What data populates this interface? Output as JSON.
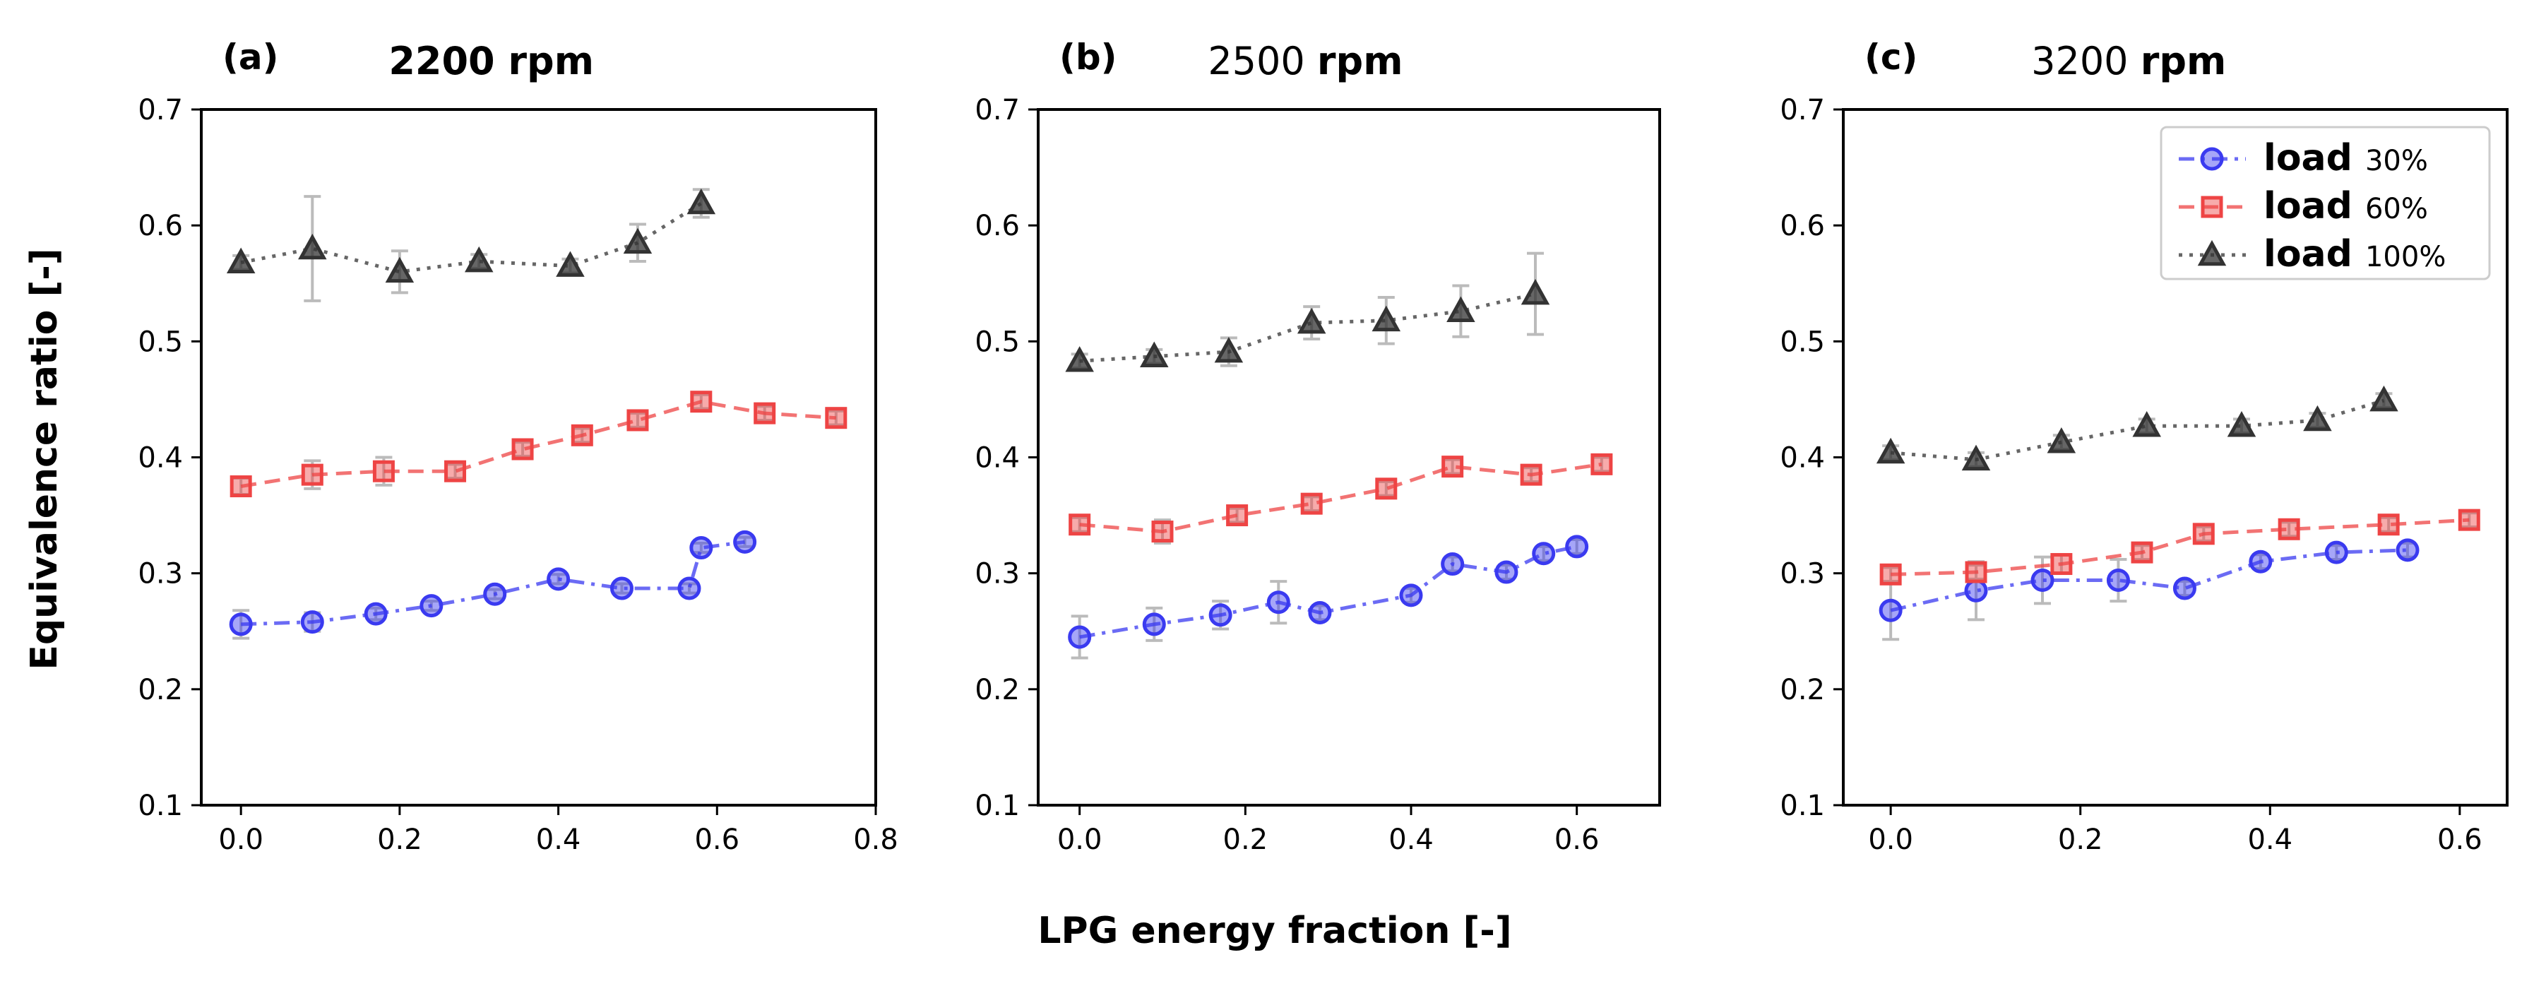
{
  "chart_data": [
    {
      "type": "line",
      "panel_label": "(a)",
      "title_value": "2200",
      "title_unit": "rpm",
      "xlabel": "LPG energy fraction [-]",
      "ylabel": "Equivalence ratio [-]",
      "xlim": [
        -0.05,
        0.8
      ],
      "ylim": [
        0.1,
        0.7
      ],
      "xticks": [
        0.0,
        0.2,
        0.4,
        0.6,
        0.8
      ],
      "xtick_labels": [
        "0.0",
        "0.2",
        "0.4",
        "0.6",
        "0.8"
      ],
      "yticks": [
        0.1,
        0.2,
        0.3,
        0.4,
        0.5,
        0.6,
        0.7
      ],
      "ytick_labels": [
        "0.1",
        "0.2",
        "0.3",
        "0.4",
        "0.5",
        "0.6",
        "0.7"
      ],
      "series": [
        {
          "name": "load 30%",
          "x": [
            0.0,
            0.09,
            0.17,
            0.24,
            0.32,
            0.4,
            0.48,
            0.565,
            0.58,
            0.635
          ],
          "y": [
            0.256,
            0.258,
            0.265,
            0.272,
            0.282,
            0.295,
            0.287,
            0.287,
            0.322,
            0.327
          ],
          "err": [
            0.012,
            0.008,
            0.005,
            0.004,
            0.004,
            0.004,
            0.004,
            0.004,
            0.004,
            0.004
          ]
        },
        {
          "name": "load 60%",
          "x": [
            0.0,
            0.09,
            0.18,
            0.27,
            0.355,
            0.43,
            0.5,
            0.58,
            0.66,
            0.75
          ],
          "y": [
            0.375,
            0.385,
            0.388,
            0.388,
            0.407,
            0.419,
            0.432,
            0.448,
            0.438,
            0.434
          ],
          "err": [
            0.007,
            0.012,
            0.012,
            0.006,
            0.006,
            0.006,
            0.006,
            0.006,
            0.006,
            0.006
          ]
        },
        {
          "name": "load 100%",
          "x": [
            0.0,
            0.09,
            0.2,
            0.3,
            0.415,
            0.5,
            0.58
          ],
          "y": [
            0.568,
            0.58,
            0.56,
            0.569,
            0.565,
            0.585,
            0.619
          ],
          "err": [
            0.006,
            0.045,
            0.018,
            0.006,
            0.006,
            0.016,
            0.012
          ]
        }
      ]
    },
    {
      "type": "line",
      "panel_label": "(b)",
      "title_value": "2500",
      "title_unit": "rpm",
      "xlim": [
        -0.05,
        0.7
      ],
      "ylim": [
        0.1,
        0.7
      ],
      "xticks": [
        0.0,
        0.2,
        0.4,
        0.6
      ],
      "xtick_labels": [
        "0.0",
        "0.2",
        "0.4",
        "0.6"
      ],
      "yticks": [
        0.1,
        0.2,
        0.3,
        0.4,
        0.5,
        0.6,
        0.7
      ],
      "ytick_labels": [
        "0.1",
        "0.2",
        "0.3",
        "0.4",
        "0.5",
        "0.6",
        "0.7"
      ],
      "series": [
        {
          "name": "load 30%",
          "x": [
            0.0,
            0.09,
            0.17,
            0.24,
            0.29,
            0.4,
            0.45,
            0.515,
            0.56,
            0.6
          ],
          "y": [
            0.245,
            0.256,
            0.264,
            0.275,
            0.266,
            0.281,
            0.308,
            0.301,
            0.317,
            0.323
          ],
          "err": [
            0.018,
            0.014,
            0.012,
            0.018,
            0.006,
            0.006,
            0.006,
            0.006,
            0.006,
            0.006
          ]
        },
        {
          "name": "load 60%",
          "x": [
            0.0,
            0.1,
            0.19,
            0.28,
            0.37,
            0.45,
            0.545,
            0.63
          ],
          "y": [
            0.342,
            0.336,
            0.35,
            0.36,
            0.373,
            0.392,
            0.385,
            0.394
          ],
          "err": [
            0.006,
            0.01,
            0.006,
            0.006,
            0.006,
            0.006,
            0.006,
            0.006
          ]
        },
        {
          "name": "load 100%",
          "x": [
            0.0,
            0.09,
            0.18,
            0.28,
            0.37,
            0.46,
            0.55
          ],
          "y": [
            0.483,
            0.487,
            0.491,
            0.516,
            0.518,
            0.526,
            0.541
          ],
          "err": [
            0.006,
            0.006,
            0.012,
            0.014,
            0.02,
            0.022,
            0.035
          ]
        }
      ]
    },
    {
      "type": "line",
      "panel_label": "(c)",
      "title_value": "3200",
      "title_unit": "rpm",
      "xlim": [
        -0.05,
        0.65
      ],
      "ylim": [
        0.1,
        0.7
      ],
      "xticks": [
        0.0,
        0.2,
        0.4,
        0.6
      ],
      "xtick_labels": [
        "0.0",
        "0.2",
        "0.4",
        "0.6"
      ],
      "yticks": [
        0.1,
        0.2,
        0.3,
        0.4,
        0.5,
        0.6,
        0.7
      ],
      "ytick_labels": [
        "0.1",
        "0.2",
        "0.3",
        "0.4",
        "0.5",
        "0.6",
        "0.7"
      ],
      "legend": {
        "placement": "top-right",
        "entries": [
          {
            "bold": "load",
            "value": "30%"
          },
          {
            "bold": "load",
            "value": "60%"
          },
          {
            "bold": "load",
            "value": "100%"
          }
        ]
      },
      "series": [
        {
          "name": "load 30%",
          "x": [
            0.0,
            0.09,
            0.16,
            0.24,
            0.31,
            0.39,
            0.47,
            0.545
          ],
          "y": [
            0.268,
            0.285,
            0.294,
            0.294,
            0.287,
            0.31,
            0.318,
            0.32
          ],
          "err": [
            0.025,
            0.025,
            0.02,
            0.018,
            0.006,
            0.006,
            0.006,
            0.006
          ]
        },
        {
          "name": "load 60%",
          "x": [
            0.0,
            0.09,
            0.18,
            0.265,
            0.33,
            0.42,
            0.525,
            0.61
          ],
          "y": [
            0.299,
            0.301,
            0.308,
            0.318,
            0.334,
            0.338,
            0.342,
            0.346
          ],
          "err": [
            0.006,
            0.006,
            0.008,
            0.006,
            0.006,
            0.006,
            0.006,
            0.006
          ]
        },
        {
          "name": "load 100%",
          "x": [
            0.0,
            0.09,
            0.18,
            0.27,
            0.37,
            0.45,
            0.52
          ],
          "y": [
            0.404,
            0.398,
            0.413,
            0.427,
            0.427,
            0.432,
            0.449
          ],
          "err": [
            0.006,
            0.006,
            0.006,
            0.006,
            0.006,
            0.006,
            0.006
          ]
        }
      ]
    }
  ],
  "styles": {
    "series_colors": [
      "#3a3af0",
      "#ee4444",
      "#333333"
    ],
    "series_markers": [
      "circle",
      "square",
      "triangle"
    ],
    "series_dashes": [
      "dashdot",
      "dashed",
      "dotted"
    ],
    "errorbar_color": "#bbbbbb"
  }
}
